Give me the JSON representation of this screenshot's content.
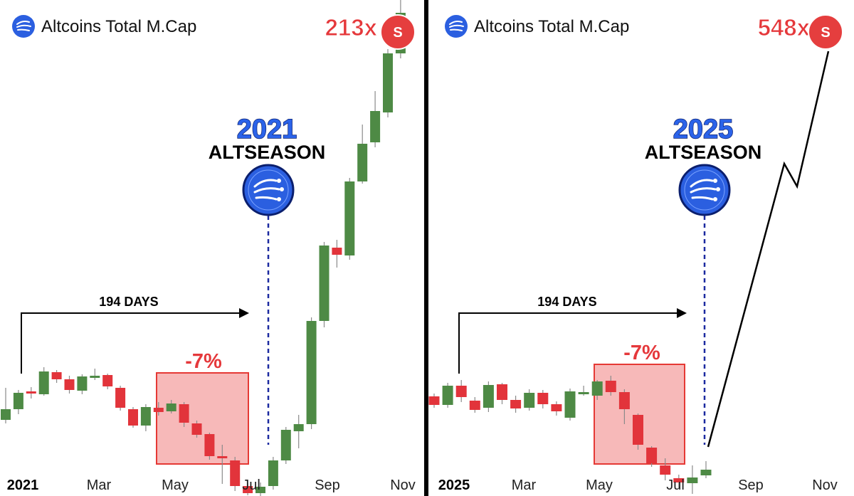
{
  "chart_data": [
    {
      "type": "candlestick",
      "title": "Altcoins Total M.Cap",
      "multiplier": "213x",
      "badge_letter": "S",
      "event_year": "2021",
      "event_label": "ALTSEASON",
      "duration_label": "194 DAYS",
      "drawdown_label": "-7%",
      "x_ticks": [
        "2021",
        "Mar",
        "May",
        "Jul",
        "Sep",
        "Nov"
      ],
      "colors": {
        "up": "#4e8a45",
        "down": "#e2343b",
        "highlight": "#f7b9b9",
        "highlight_border": "#e53935",
        "accent": "#2b63e9"
      },
      "candles": [
        {
          "o": 30,
          "c": 45,
          "h": 75,
          "l": 25
        },
        {
          "o": 45,
          "c": 68,
          "h": 72,
          "l": 38
        },
        {
          "o": 70,
          "c": 68,
          "h": 76,
          "l": 60
        },
        {
          "o": 66,
          "c": 98,
          "h": 104,
          "l": 64
        },
        {
          "o": 97,
          "c": 87,
          "h": 100,
          "l": 82
        },
        {
          "o": 87,
          "c": 72,
          "h": 92,
          "l": 67
        },
        {
          "o": 71,
          "c": 91,
          "h": 94,
          "l": 66
        },
        {
          "o": 92,
          "c": 92,
          "h": 102,
          "l": 86
        },
        {
          "o": 93,
          "c": 77,
          "h": 95,
          "l": 73
        },
        {
          "o": 75,
          "c": 47,
          "h": 78,
          "l": 43
        },
        {
          "o": 45,
          "c": 22,
          "h": 48,
          "l": 19
        },
        {
          "o": 22,
          "c": 48,
          "h": 52,
          "l": 14
        },
        {
          "o": 47,
          "c": 41,
          "h": 55,
          "l": 36
        },
        {
          "o": 42,
          "c": 53,
          "h": 58,
          "l": 39
        },
        {
          "o": 52,
          "c": 26,
          "h": 55,
          "l": 20
        },
        {
          "o": 25,
          "c": 9,
          "h": 29,
          "l": 5
        },
        {
          "o": 10,
          "c": -21,
          "h": 12,
          "l": -26
        },
        {
          "o": -21,
          "c": -24,
          "h": -5,
          "l": -60
        },
        {
          "o": -27,
          "c": -63,
          "h": -22,
          "l": -70
        },
        {
          "o": -63,
          "c": -73,
          "h": -59,
          "l": -76
        },
        {
          "o": -73,
          "c": -64,
          "h": -58,
          "l": -79
        },
        {
          "o": -63,
          "c": -27,
          "h": -22,
          "l": -68
        },
        {
          "o": -27,
          "c": 16,
          "h": 20,
          "l": -32
        },
        {
          "o": 14,
          "c": 24,
          "h": 37,
          "l": -10
        },
        {
          "o": 24,
          "c": 169,
          "h": 174,
          "l": 17
        },
        {
          "o": 169,
          "c": 275,
          "h": 280,
          "l": 160
        },
        {
          "o": 272,
          "c": 262,
          "h": 283,
          "l": 244
        },
        {
          "o": 261,
          "c": 365,
          "h": 370,
          "l": 255
        },
        {
          "o": 365,
          "c": 418,
          "h": 445,
          "l": 362
        },
        {
          "o": 420,
          "c": 464,
          "h": 492,
          "l": 413
        },
        {
          "o": 462,
          "c": 545,
          "h": 551,
          "l": 455
        },
        {
          "o": 545,
          "c": 602,
          "h": 625,
          "l": 538
        }
      ]
    },
    {
      "type": "candlestick",
      "title": "Altcoins Total M.Cap",
      "multiplier": "548x",
      "badge_letter": "S",
      "event_year": "2025",
      "event_label": "ALTSEASON",
      "duration_label": "194 DAYS",
      "drawdown_label": "-7%",
      "x_ticks": [
        "2025",
        "Mar",
        "May",
        "Jul",
        "Sep",
        "Nov"
      ],
      "colors": {
        "up": "#4e8a45",
        "down": "#e2343b",
        "highlight": "#f7b9b9",
        "highlight_border": "#e53935",
        "accent": "#2b63e9"
      },
      "candles": [
        {
          "o": 63,
          "c": 51,
          "h": 67,
          "l": 47
        },
        {
          "o": 51,
          "c": 78,
          "h": 82,
          "l": 47
        },
        {
          "o": 78,
          "c": 62,
          "h": 86,
          "l": 55
        },
        {
          "o": 57,
          "c": 44,
          "h": 62,
          "l": 40
        },
        {
          "o": 47,
          "c": 79,
          "h": 84,
          "l": 41
        },
        {
          "o": 80,
          "c": 58,
          "h": 82,
          "l": 52
        },
        {
          "o": 58,
          "c": 46,
          "h": 64,
          "l": 40
        },
        {
          "o": 47,
          "c": 68,
          "h": 73,
          "l": 43
        },
        {
          "o": 68,
          "c": 52,
          "h": 72,
          "l": 46
        },
        {
          "o": 52,
          "c": 42,
          "h": 56,
          "l": 36
        },
        {
          "o": 33,
          "c": 70,
          "h": 74,
          "l": 29
        },
        {
          "o": 69,
          "c": 69,
          "h": 78,
          "l": 64
        },
        {
          "o": 64,
          "c": 84,
          "h": 86,
          "l": 58
        },
        {
          "o": 85,
          "c": 69,
          "h": 92,
          "l": 64
        },
        {
          "o": 69,
          "c": 45,
          "h": 73,
          "l": 24
        },
        {
          "o": 37,
          "c": -5,
          "h": 39,
          "l": -12
        },
        {
          "o": -9,
          "c": -31,
          "h": -7,
          "l": -36
        },
        {
          "o": -34,
          "c": -47,
          "h": -24,
          "l": -55
        },
        {
          "o": -52,
          "c": -58,
          "h": -47,
          "l": -65
        },
        {
          "o": -59,
          "c": -51,
          "h": -34,
          "l": -74
        },
        {
          "o": -48,
          "c": -40,
          "h": -28,
          "l": -52
        }
      ],
      "projection_path": "straight rise, pullback, then rise to target"
    }
  ]
}
